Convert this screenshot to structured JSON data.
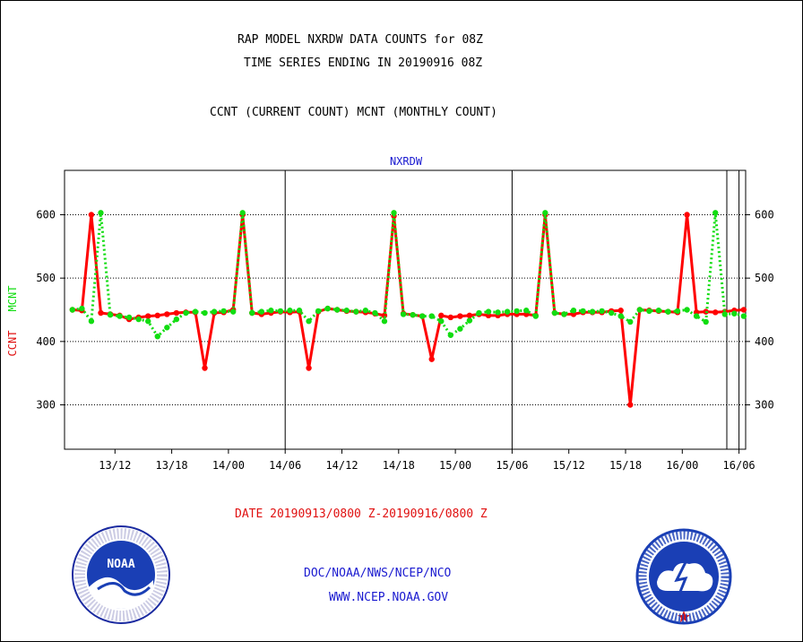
{
  "header": {
    "title_line1": "RAP MODEL NXRDW DATA COUNTS for 08Z",
    "title_line2": "TIME SERIES ENDING IN 20190916 08Z",
    "subtitle": "CCNT (CURRENT COUNT) MCNT (MONTHLY COUNT)"
  },
  "footer": {
    "date_range": "DATE 20190913/0800 Z-20190916/0800 Z",
    "org": "DOC/NOAA/NWS/NCEP/NCO",
    "url": "WWW.NCEP.NOAA.GOV"
  },
  "logos": {
    "noaa_label": "NOAA",
    "nws_label": "NATIONAL WEATHER SERVICE"
  },
  "colors": {
    "ccnt": "#ff0000",
    "mcnt": "#11dd11",
    "axis": "#000000",
    "panel_title": "#1a1ad0"
  },
  "chart_data": {
    "type": "line",
    "title": "NXRDW",
    "ylabel_left": "CCNT",
    "ylabel_right": "MCNT",
    "ylim": [
      230,
      670
    ],
    "yticks": [
      300,
      400,
      500,
      600
    ],
    "x_start": "2019-09-13 06:00",
    "x_end": "2019-09-16 08:00",
    "x_unit": "hour",
    "xticks": [
      "13/12",
      "13/18",
      "14/00",
      "14/06",
      "14/12",
      "14/18",
      "15/00",
      "15/06",
      "15/12",
      "15/18",
      "16/00",
      "16/06"
    ],
    "grid": "horizontal dotted",
    "series": [
      {
        "name": "CCNT",
        "values": [
          [
            0,
            452
          ],
          [
            1,
            450
          ],
          [
            2,
            450
          ],
          [
            3,
            449
          ],
          [
            4,
            600
          ],
          [
            5,
            445
          ],
          [
            6,
            443
          ],
          [
            7,
            441
          ],
          [
            8,
            435
          ],
          [
            9,
            438
          ],
          [
            10,
            440
          ],
          [
            11,
            441
          ],
          [
            12,
            443
          ],
          [
            13,
            445
          ],
          [
            14,
            446
          ],
          [
            15,
            446
          ],
          [
            16,
            358
          ],
          [
            17,
            445
          ],
          [
            18,
            446
          ],
          [
            19,
            450
          ],
          [
            20,
            600
          ],
          [
            21,
            445
          ],
          [
            22,
            443
          ],
          [
            23,
            445
          ],
          [
            24,
            447
          ],
          [
            25,
            446
          ],
          [
            26,
            447
          ],
          [
            27,
            358
          ],
          [
            28,
            447
          ],
          [
            29,
            452
          ],
          [
            30,
            450
          ],
          [
            31,
            448
          ],
          [
            32,
            447
          ],
          [
            33,
            446
          ],
          [
            34,
            444
          ],
          [
            35,
            441
          ],
          [
            36,
            598
          ],
          [
            37,
            444
          ],
          [
            38,
            442
          ],
          [
            39,
            440
          ],
          [
            40,
            372
          ],
          [
            41,
            441
          ],
          [
            42,
            438
          ],
          [
            43,
            440
          ],
          [
            44,
            441
          ],
          [
            45,
            443
          ],
          [
            46,
            441
          ],
          [
            47,
            441
          ],
          [
            48,
            443
          ],
          [
            49,
            443
          ],
          [
            50,
            443
          ],
          [
            51,
            441
          ],
          [
            52,
            600
          ],
          [
            53,
            445
          ],
          [
            54,
            443
          ],
          [
            55,
            443
          ],
          [
            56,
            446
          ],
          [
            57,
            446
          ],
          [
            58,
            446
          ],
          [
            59,
            448
          ],
          [
            60,
            449
          ],
          [
            61,
            300
          ],
          [
            62,
            450
          ],
          [
            63,
            449
          ],
          [
            64,
            448
          ],
          [
            65,
            447
          ],
          [
            66,
            446
          ],
          [
            67,
            600
          ],
          [
            68,
            446
          ],
          [
            69,
            447
          ],
          [
            70,
            446
          ],
          [
            71,
            447
          ],
          [
            72,
            449
          ],
          [
            73,
            450
          ],
          [
            74,
            450
          ],
          [
            75,
            447
          ],
          [
            76,
            445
          ],
          [
            77,
            377
          ],
          [
            78,
            448
          ],
          [
            79,
            450
          ],
          [
            80,
            449
          ],
          [
            81,
            300
          ],
          [
            82,
            600
          ],
          [
            83,
            298
          ],
          [
            84,
            446
          ],
          [
            85,
            447
          ],
          [
            86,
            449
          ],
          [
            87,
            448
          ],
          [
            88,
            449
          ],
          [
            89,
            450
          ],
          [
            90,
            448
          ],
          [
            91,
            449
          ],
          [
            92,
            449
          ],
          [
            93,
            426
          ]
        ]
      },
      {
        "name": "MCNT",
        "values": [
          [
            0,
            455
          ],
          [
            1,
            447
          ],
          [
            2,
            450
          ],
          [
            3,
            452
          ],
          [
            4,
            432
          ],
          [
            5,
            603
          ],
          [
            6,
            442
          ],
          [
            7,
            440
          ],
          [
            8,
            438
          ],
          [
            9,
            435
          ],
          [
            10,
            432
          ],
          [
            11,
            408
          ],
          [
            12,
            422
          ],
          [
            13,
            435
          ],
          [
            14,
            445
          ],
          [
            15,
            447
          ],
          [
            16,
            445
          ],
          [
            17,
            447
          ],
          [
            18,
            448
          ],
          [
            19,
            447
          ],
          [
            20,
            603
          ],
          [
            21,
            445
          ],
          [
            22,
            447
          ],
          [
            23,
            449
          ],
          [
            24,
            448
          ],
          [
            25,
            449
          ],
          [
            26,
            449
          ],
          [
            27,
            432
          ],
          [
            28,
            448
          ],
          [
            29,
            452
          ],
          [
            30,
            450
          ],
          [
            31,
            449
          ],
          [
            32,
            447
          ],
          [
            33,
            449
          ],
          [
            34,
            445
          ],
          [
            35,
            432
          ],
          [
            36,
            603
          ],
          [
            37,
            443
          ],
          [
            38,
            442
          ],
          [
            39,
            440
          ],
          [
            40,
            440
          ],
          [
            41,
            432
          ],
          [
            42,
            410
          ],
          [
            43,
            420
          ],
          [
            44,
            433
          ],
          [
            45,
            445
          ],
          [
            46,
            447
          ],
          [
            47,
            446
          ],
          [
            48,
            447
          ],
          [
            49,
            448
          ],
          [
            50,
            449
          ],
          [
            51,
            440
          ],
          [
            52,
            603
          ],
          [
            53,
            445
          ],
          [
            54,
            443
          ],
          [
            55,
            449
          ],
          [
            56,
            448
          ],
          [
            57,
            447
          ],
          [
            58,
            448
          ],
          [
            59,
            445
          ],
          [
            60,
            440
          ],
          [
            61,
            431
          ],
          [
            62,
            450
          ],
          [
            63,
            448
          ],
          [
            64,
            449
          ],
          [
            65,
            447
          ],
          [
            66,
            448
          ],
          [
            67,
            450
          ],
          [
            68,
            440
          ],
          [
            69,
            431
          ],
          [
            70,
            603
          ],
          [
            71,
            443
          ],
          [
            72,
            444
          ],
          [
            73,
            440
          ],
          [
            74,
            438
          ],
          [
            75,
            436
          ],
          [
            76,
            410
          ],
          [
            77,
            420
          ],
          [
            78,
            432
          ],
          [
            79,
            445
          ],
          [
            80,
            447
          ],
          [
            81,
            446
          ],
          [
            82,
            448
          ],
          [
            83,
            447
          ],
          [
            84,
            447
          ],
          [
            85,
            603
          ],
          [
            86,
            500
          ],
          [
            87,
            450
          ],
          [
            88,
            447
          ],
          [
            89,
            448
          ],
          [
            90,
            449
          ],
          [
            91,
            431
          ],
          [
            92,
            448
          ],
          [
            93,
            448
          ],
          [
            94,
            449
          ]
        ]
      }
    ]
  }
}
